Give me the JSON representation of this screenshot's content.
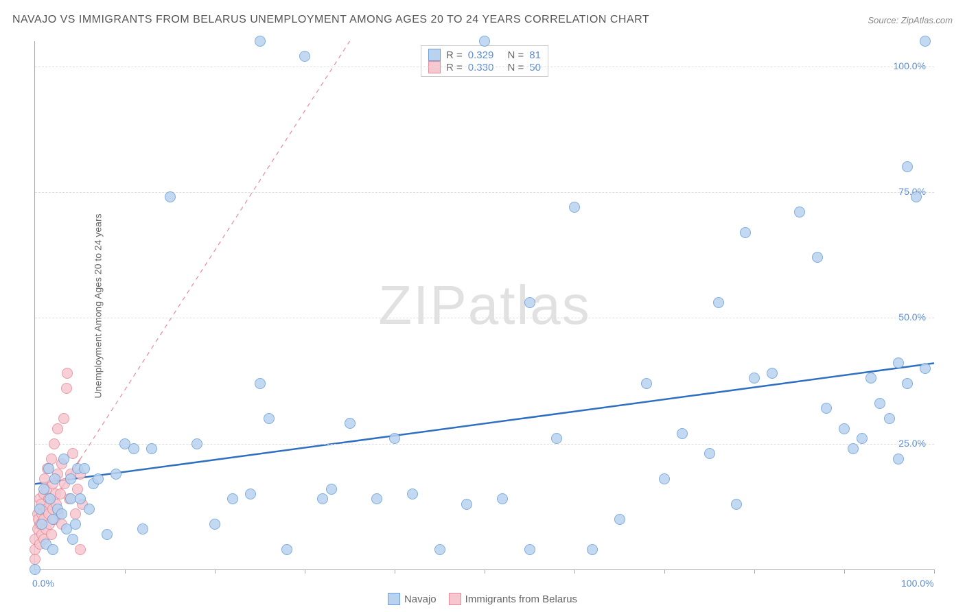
{
  "header": {
    "title": "NAVAJO VS IMMIGRANTS FROM BELARUS UNEMPLOYMENT AMONG AGES 20 TO 24 YEARS CORRELATION CHART",
    "source_prefix": "Source: ",
    "source_link": "ZipAtlas.com"
  },
  "axes": {
    "ylabel": "Unemployment Among Ages 20 to 24 years",
    "y_ticks": [
      0,
      25,
      50,
      75,
      100
    ],
    "y_tick_labels": [
      "0.0%",
      "25.0%",
      "50.0%",
      "75.0%",
      "100.0%"
    ],
    "x_ticks": [
      0,
      10,
      20,
      30,
      40,
      50,
      60,
      70,
      80,
      90,
      100
    ],
    "x_min_label": "0.0%",
    "x_max_label": "100.0%",
    "xlim": [
      0,
      100
    ],
    "ylim": [
      0,
      105
    ]
  },
  "style": {
    "background": "#ffffff",
    "grid_color": "#dddddd",
    "axis_color": "#aaaaaa",
    "tick_label_color": "#5b8dd6",
    "marker_radius": 8,
    "marker_stroke_width": 1.5,
    "title_color": "#555555",
    "title_fontsize": 16
  },
  "series": {
    "navajo": {
      "label": "Navajo",
      "fill": "#b9d2ef",
      "stroke": "#6a9fd8",
      "line_color": "#2f6fc0",
      "line_width": 2.5,
      "line_dash": "solid",
      "trend": {
        "x1": 0,
        "y1": 17,
        "x2": 100,
        "y2": 41
      },
      "R": "0.329",
      "N": "81",
      "points": [
        [
          0,
          0
        ],
        [
          0.5,
          12
        ],
        [
          0.8,
          9
        ],
        [
          1,
          16
        ],
        [
          1.2,
          5
        ],
        [
          1.5,
          20
        ],
        [
          1.7,
          14
        ],
        [
          2,
          10
        ],
        [
          2,
          4
        ],
        [
          2.2,
          18
        ],
        [
          2.5,
          12
        ],
        [
          3,
          11
        ],
        [
          3.2,
          22
        ],
        [
          3.5,
          8
        ],
        [
          4,
          14
        ],
        [
          4,
          18
        ],
        [
          4.2,
          6
        ],
        [
          4.5,
          9
        ],
        [
          4.7,
          20
        ],
        [
          5,
          14
        ],
        [
          5.5,
          20
        ],
        [
          6,
          12
        ],
        [
          6.5,
          17
        ],
        [
          7,
          18
        ],
        [
          8,
          7
        ],
        [
          9,
          19
        ],
        [
          10,
          25
        ],
        [
          11,
          24
        ],
        [
          12,
          8
        ],
        [
          13,
          24
        ],
        [
          15,
          74
        ],
        [
          18,
          25
        ],
        [
          20,
          9
        ],
        [
          22,
          14
        ],
        [
          24,
          15
        ],
        [
          25,
          105
        ],
        [
          25,
          37
        ],
        [
          26,
          30
        ],
        [
          28,
          4
        ],
        [
          30,
          102
        ],
        [
          32,
          14
        ],
        [
          33,
          16
        ],
        [
          35,
          29
        ],
        [
          38,
          14
        ],
        [
          40,
          26
        ],
        [
          42,
          15
        ],
        [
          45,
          4
        ],
        [
          48,
          13
        ],
        [
          50,
          105
        ],
        [
          52,
          14
        ],
        [
          55,
          4
        ],
        [
          55,
          53
        ],
        [
          58,
          26
        ],
        [
          60,
          72
        ],
        [
          62,
          4
        ],
        [
          65,
          10
        ],
        [
          68,
          37
        ],
        [
          70,
          18
        ],
        [
          72,
          27
        ],
        [
          75,
          23
        ],
        [
          76,
          53
        ],
        [
          78,
          13
        ],
        [
          79,
          67
        ],
        [
          80,
          38
        ],
        [
          82,
          39
        ],
        [
          85,
          71
        ],
        [
          87,
          62
        ],
        [
          88,
          32
        ],
        [
          90,
          28
        ],
        [
          91,
          24
        ],
        [
          92,
          26
        ],
        [
          93,
          38
        ],
        [
          94,
          33
        ],
        [
          95,
          30
        ],
        [
          96,
          41
        ],
        [
          96,
          22
        ],
        [
          97,
          80
        ],
        [
          97,
          37
        ],
        [
          98,
          74
        ],
        [
          99,
          40
        ],
        [
          99,
          105
        ]
      ]
    },
    "belarus": {
      "label": "Immigrants from Belarus",
      "fill": "#f6c7cf",
      "stroke": "#e88a9a",
      "line_color": "#e88a9a",
      "line_width": 2,
      "line_dash": "dashed",
      "trend": {
        "x1": 0,
        "y1": 8,
        "x2": 35,
        "y2": 105
      },
      "trend_solid_until_x": 5,
      "R": "0.330",
      "N": "50",
      "points": [
        [
          0,
          2
        ],
        [
          0,
          4
        ],
        [
          0,
          6
        ],
        [
          0.3,
          8
        ],
        [
          0.3,
          11
        ],
        [
          0.4,
          10
        ],
        [
          0.5,
          14
        ],
        [
          0.5,
          5
        ],
        [
          0.6,
          9
        ],
        [
          0.7,
          13
        ],
        [
          0.8,
          7
        ],
        [
          0.8,
          11
        ],
        [
          1,
          10
        ],
        [
          1,
          15
        ],
        [
          1,
          6
        ],
        [
          1.1,
          18
        ],
        [
          1.2,
          12
        ],
        [
          1.2,
          8
        ],
        [
          1.3,
          16
        ],
        [
          1.4,
          20
        ],
        [
          1.5,
          11
        ],
        [
          1.5,
          14
        ],
        [
          1.6,
          9
        ],
        [
          1.7,
          13
        ],
        [
          1.8,
          22
        ],
        [
          1.8,
          7
        ],
        [
          2,
          12
        ],
        [
          2,
          17
        ],
        [
          2.1,
          25
        ],
        [
          2.2,
          10
        ],
        [
          2.3,
          15
        ],
        [
          2.4,
          13
        ],
        [
          2.5,
          19
        ],
        [
          2.5,
          28
        ],
        [
          2.6,
          11
        ],
        [
          2.8,
          15
        ],
        [
          3,
          21
        ],
        [
          3,
          9
        ],
        [
          3.2,
          30
        ],
        [
          3.3,
          17
        ],
        [
          3.5,
          36
        ],
        [
          3.6,
          39
        ],
        [
          3.8,
          14
        ],
        [
          4,
          19
        ],
        [
          4.2,
          23
        ],
        [
          4.5,
          11
        ],
        [
          4.7,
          16
        ],
        [
          5,
          19
        ],
        [
          5,
          4
        ],
        [
          5.3,
          13
        ]
      ]
    }
  },
  "legend_top": {
    "R_label": "R =",
    "N_label": "N ="
  },
  "legend_bottom": {
    "items": [
      "navajo",
      "belarus"
    ]
  },
  "watermark": {
    "text_a": "ZIP",
    "text_b": "atlas"
  }
}
